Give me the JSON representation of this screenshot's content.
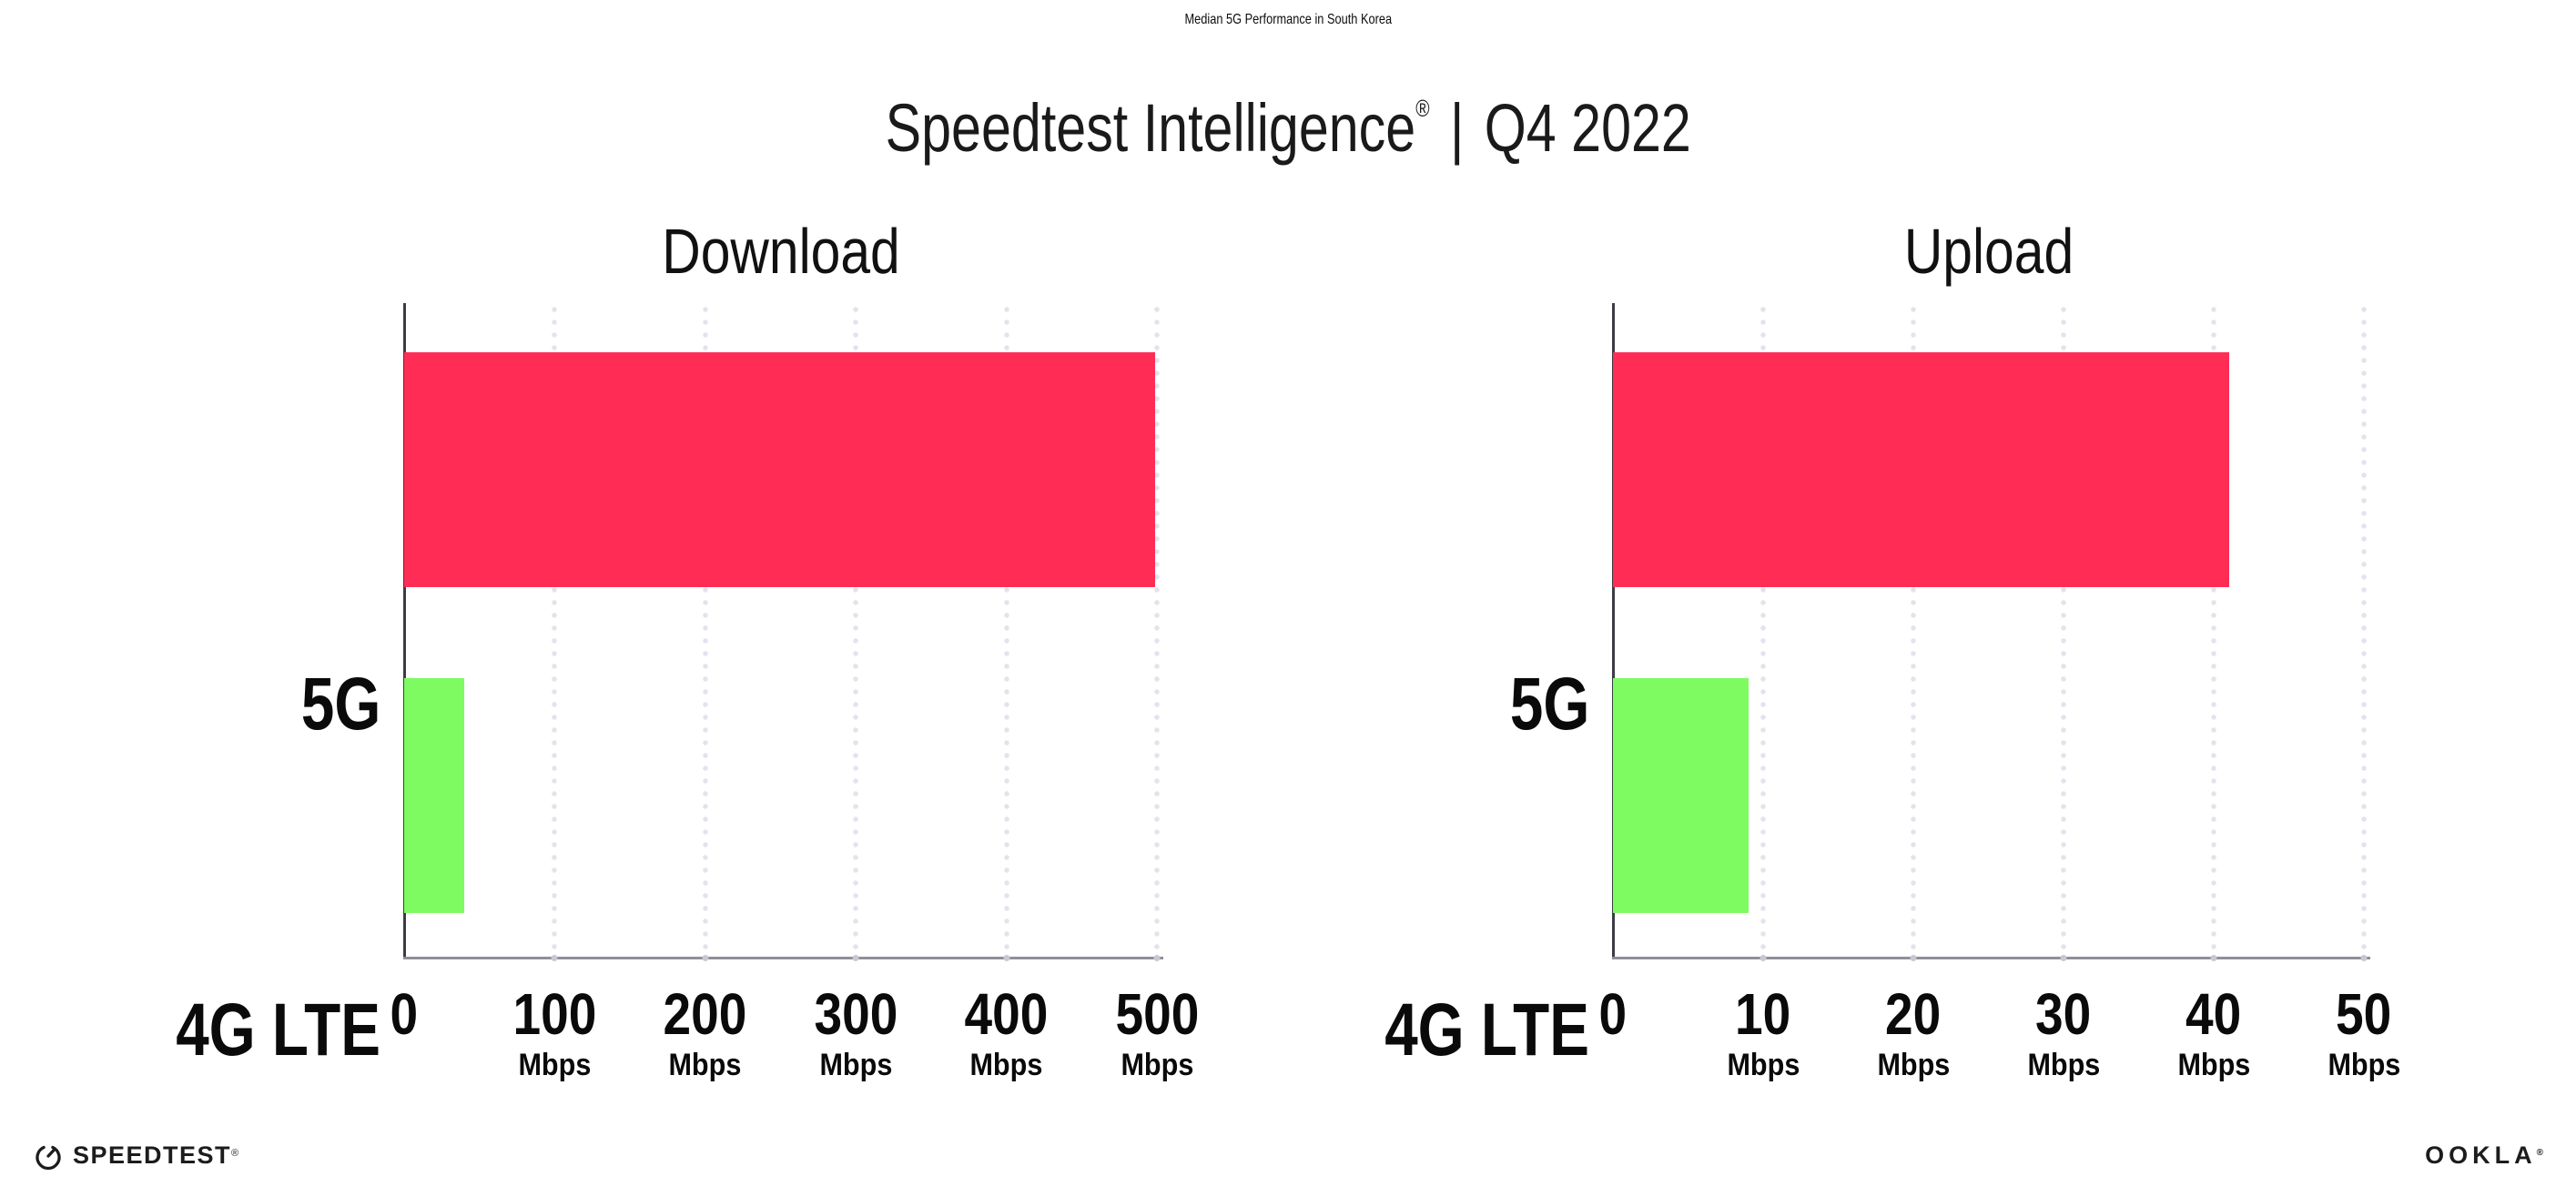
{
  "header": {
    "title": "Median 5G Performance in South Korea",
    "subtitle_brand": "Speedtest Intelligence",
    "subtitle_reg": "®",
    "subtitle_divider": "|",
    "subtitle_period": "Q4 2022"
  },
  "chart_data": [
    {
      "type": "bar",
      "orientation": "horizontal",
      "title": "Download",
      "categories": [
        "5G",
        "4G LTE"
      ],
      "values": [
        499,
        40
      ],
      "unit": "Mbps",
      "xlim": [
        0,
        500
      ],
      "xticks": [
        0,
        100,
        200,
        300,
        400,
        500
      ],
      "tick_unit": "Mbps",
      "grid": "dotted-vertical",
      "legend": "none",
      "bar_colors": [
        "#ff2d55",
        "#7efb61"
      ]
    },
    {
      "type": "bar",
      "orientation": "horizontal",
      "title": "Upload",
      "categories": [
        "5G",
        "4G LTE"
      ],
      "values": [
        41,
        9
      ],
      "unit": "Mbps",
      "xlim": [
        0,
        50
      ],
      "xticks": [
        0,
        10,
        20,
        30,
        40,
        50
      ],
      "tick_unit": "Mbps",
      "grid": "dotted-vertical",
      "legend": "none",
      "bar_colors": [
        "#ff2d55",
        "#7efb61"
      ]
    }
  ],
  "footer": {
    "speedtest_logo_text": "SPEEDTEST",
    "speedtest_reg": "®",
    "ookla_logo_text": "OOKLA",
    "ookla_reg": "®"
  },
  "colors": {
    "bar_5g": "#ff2d55",
    "bar_4g_lte": "#7efb61",
    "gridline": "#e2e3ed",
    "x_axis_line": "#8f8f97",
    "y_axis_line": "#3c3c44",
    "text": "#0d0d0d",
    "background": "#ffffff"
  }
}
